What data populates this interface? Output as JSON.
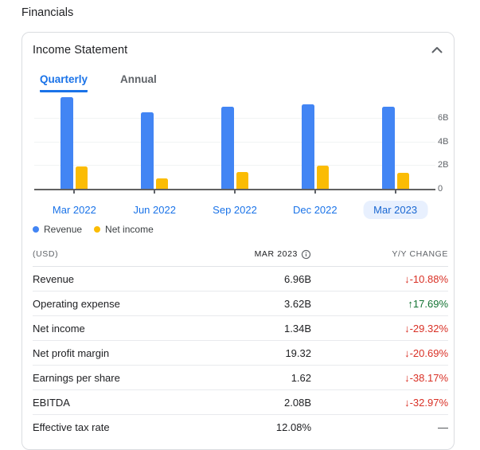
{
  "page": {
    "title": "Financials"
  },
  "card": {
    "title": "Income Statement",
    "tabs": [
      {
        "label": "Quarterly",
        "active": true
      },
      {
        "label": "Annual",
        "active": false
      }
    ]
  },
  "chart_data": {
    "type": "bar",
    "title": "",
    "categories": [
      "Mar 2022",
      "Jun 2022",
      "Sep 2022",
      "Dec 2022",
      "Mar 2023"
    ],
    "series": [
      {
        "name": "Revenue",
        "color": "#4285f4",
        "values": [
          7.8,
          6.5,
          7.0,
          7.2,
          6.96
        ]
      },
      {
        "name": "Net income",
        "color": "#fbbc04",
        "values": [
          1.9,
          0.9,
          1.45,
          1.95,
          1.34
        ]
      }
    ],
    "unit": "B",
    "y_ticks": [
      0,
      2,
      4,
      6
    ],
    "y_tick_labels": [
      "0",
      "2B",
      "4B",
      "6B"
    ],
    "ylim": [
      0,
      8.2
    ],
    "grid": true,
    "selected_category": "Mar 2023",
    "legend_position": "bottom"
  },
  "table": {
    "unit_header": "(USD)",
    "period_header": "MAR 2023",
    "change_header": "Y/Y CHANGE",
    "rows": [
      {
        "label": "Revenue",
        "value": "6.96B",
        "change": "-10.88%",
        "direction": "down"
      },
      {
        "label": "Operating expense",
        "value": "3.62B",
        "change": "17.69%",
        "direction": "up"
      },
      {
        "label": "Net income",
        "value": "1.34B",
        "change": "-29.32%",
        "direction": "down"
      },
      {
        "label": "Net profit margin",
        "value": "19.32",
        "change": "-20.69%",
        "direction": "down"
      },
      {
        "label": "Earnings per share",
        "value": "1.62",
        "change": "-38.17%",
        "direction": "down"
      },
      {
        "label": "EBITDA",
        "value": "2.08B",
        "change": "-32.97%",
        "direction": "down"
      },
      {
        "label": "Effective tax rate",
        "value": "12.08%",
        "change": "—",
        "direction": "flat"
      }
    ]
  },
  "icons": {
    "collapse": "chevron-up",
    "period_info": "info",
    "arrow_down": "↓",
    "arrow_up": "↑"
  },
  "colors": {
    "accent": "#1a73e8",
    "positive": "#137333",
    "negative": "#d93025",
    "neutral": "#3c4043",
    "selected_pill_bg": "#e8f0fe"
  }
}
